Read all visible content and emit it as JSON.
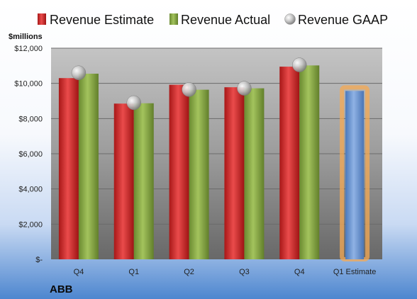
{
  "chart_data": {
    "type": "bar",
    "unit_label": "$millions",
    "company": "ABB",
    "categories": [
      "Q4",
      "Q1",
      "Q2",
      "Q3",
      "Q4",
      "Q1 Estimate"
    ],
    "series": [
      {
        "name": "Revenue Estimate",
        "kind": "bar",
        "color": "#d42a2a",
        "values": [
          10300,
          8850,
          9920,
          9780,
          10950,
          null
        ]
      },
      {
        "name": "Revenue Actual",
        "kind": "bar",
        "color": "#86a844",
        "values": [
          10550,
          8870,
          9640,
          9720,
          11020,
          null
        ]
      },
      {
        "name": "Revenue GAAP",
        "kind": "marker",
        "color": "#b8b8b8",
        "values": [
          10600,
          8900,
          9650,
          9720,
          11050,
          null
        ]
      }
    ],
    "estimate": {
      "category": "Q1 Estimate",
      "value": 9570,
      "color": "#6f9ad6",
      "glow": "#f5a953"
    },
    "ylim": [
      0,
      12000
    ],
    "yticks": [
      {
        "value": 0,
        "label": "$-"
      },
      {
        "value": 2000,
        "label": "$2,000"
      },
      {
        "value": 4000,
        "label": "$4,000"
      },
      {
        "value": 6000,
        "label": "$6,000"
      },
      {
        "value": 8000,
        "label": "$8,000"
      },
      {
        "value": 10000,
        "label": "$10,000"
      },
      {
        "value": 12000,
        "label": "$12,000"
      }
    ],
    "grid": true,
    "legend_position": "top"
  }
}
